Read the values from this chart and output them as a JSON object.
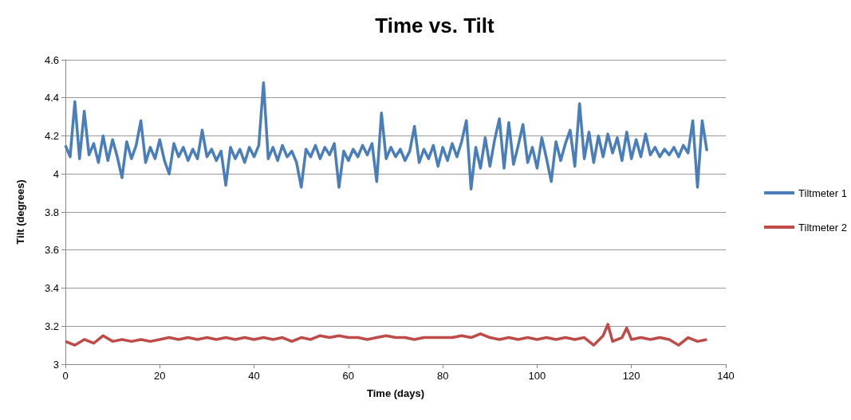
{
  "chart_data": {
    "type": "line",
    "title": "Time vs. Tilt",
    "xlabel": "Time (days)",
    "ylabel": "Tilt (degrees)",
    "xlim": [
      0,
      140
    ],
    "xticks": [
      0,
      20,
      40,
      60,
      80,
      100,
      120,
      140
    ],
    "ylim": [
      3,
      4.6
    ],
    "yticks": [
      3,
      3.2,
      3.4,
      3.6,
      3.8,
      4,
      4.2,
      4.4,
      4.6
    ],
    "grid": "y",
    "legend": "right",
    "marker": "none",
    "line_style": "solid",
    "series": [
      {
        "name": "Tiltmeter 1",
        "color": "#4a7ebb",
        "x": [
          0,
          1,
          2,
          3,
          4,
          5,
          6,
          7,
          8,
          9,
          10,
          11,
          12,
          13,
          14,
          15,
          16,
          17,
          18,
          19,
          20,
          21,
          22,
          23,
          24,
          25,
          26,
          27,
          28,
          29,
          30,
          31,
          32,
          33,
          34,
          35,
          36,
          37,
          38,
          39,
          40,
          41,
          42,
          43,
          44,
          45,
          46,
          47,
          48,
          49,
          50,
          51,
          52,
          53,
          54,
          55,
          56,
          57,
          58,
          59,
          60,
          61,
          62,
          63,
          64,
          65,
          66,
          67,
          68,
          69,
          70,
          71,
          72,
          73,
          74,
          75,
          76,
          77,
          78,
          79,
          80,
          81,
          82,
          83,
          84,
          85,
          86,
          87,
          88,
          89,
          90,
          91,
          92,
          93,
          94,
          95,
          96,
          97,
          98,
          99,
          100,
          101,
          102,
          103,
          104,
          105,
          106,
          107,
          108,
          109,
          110,
          111,
          112,
          113,
          114,
          115,
          116,
          117,
          118,
          119,
          120,
          121,
          122,
          123,
          124,
          125,
          126,
          127,
          128,
          129,
          130,
          131,
          132,
          133,
          134,
          135,
          136
        ],
        "values": [
          4.15,
          4.09,
          4.38,
          4.08,
          4.33,
          4.1,
          4.16,
          4.06,
          4.2,
          4.07,
          4.18,
          4.09,
          3.98,
          4.17,
          4.08,
          4.15,
          4.28,
          4.06,
          4.14,
          4.08,
          4.18,
          4.07,
          4.0,
          4.16,
          4.09,
          4.14,
          4.07,
          4.13,
          4.08,
          4.23,
          4.09,
          4.13,
          4.07,
          4.12,
          3.94,
          4.14,
          4.08,
          4.13,
          4.06,
          4.14,
          4.09,
          4.15,
          4.48,
          4.08,
          4.14,
          4.07,
          4.15,
          4.09,
          4.12,
          4.06,
          3.93,
          4.13,
          4.09,
          4.15,
          4.08,
          4.14,
          4.1,
          4.16,
          3.93,
          4.12,
          4.07,
          4.13,
          4.09,
          4.15,
          4.1,
          4.16,
          3.96,
          4.32,
          4.08,
          4.14,
          4.09,
          4.13,
          4.07,
          4.12,
          4.25,
          4.06,
          4.13,
          4.08,
          4.15,
          4.04,
          4.14,
          4.07,
          4.16,
          4.09,
          4.17,
          4.28,
          3.92,
          4.14,
          4.03,
          4.19,
          4.04,
          4.18,
          4.29,
          4.03,
          4.27,
          4.05,
          4.15,
          4.26,
          4.06,
          4.14,
          4.03,
          4.19,
          4.08,
          3.96,
          4.17,
          4.07,
          4.16,
          4.23,
          4.04,
          4.37,
          4.08,
          4.22,
          4.06,
          4.2,
          4.09,
          4.21,
          4.11,
          4.19,
          4.07,
          4.22,
          4.08,
          4.18,
          4.09,
          4.21,
          4.1,
          4.14,
          4.09,
          4.13,
          4.1,
          4.14,
          4.09,
          4.15,
          4.11,
          4.28,
          3.93,
          4.28,
          4.12
        ]
      },
      {
        "name": "Tiltmeter 2",
        "color": "#be4b48",
        "x": [
          0,
          2,
          4,
          6,
          8,
          10,
          12,
          14,
          16,
          18,
          20,
          22,
          24,
          26,
          28,
          30,
          32,
          34,
          36,
          38,
          40,
          42,
          44,
          46,
          48,
          50,
          52,
          54,
          56,
          58,
          60,
          62,
          64,
          66,
          68,
          70,
          72,
          74,
          76,
          78,
          80,
          82,
          84,
          86,
          88,
          90,
          92,
          94,
          96,
          98,
          100,
          102,
          104,
          106,
          108,
          110,
          112,
          114,
          115,
          116,
          118,
          119,
          120,
          122,
          124,
          126,
          128,
          130,
          132,
          134,
          136
        ],
        "values": [
          3.12,
          3.1,
          3.13,
          3.11,
          3.15,
          3.12,
          3.13,
          3.12,
          3.13,
          3.12,
          3.13,
          3.14,
          3.13,
          3.14,
          3.13,
          3.14,
          3.13,
          3.14,
          3.13,
          3.14,
          3.13,
          3.14,
          3.13,
          3.14,
          3.12,
          3.14,
          3.13,
          3.15,
          3.14,
          3.15,
          3.14,
          3.14,
          3.13,
          3.14,
          3.15,
          3.14,
          3.14,
          3.13,
          3.14,
          3.14,
          3.14,
          3.14,
          3.15,
          3.14,
          3.16,
          3.14,
          3.13,
          3.14,
          3.13,
          3.14,
          3.13,
          3.14,
          3.13,
          3.14,
          3.13,
          3.14,
          3.1,
          3.15,
          3.21,
          3.12,
          3.14,
          3.19,
          3.13,
          3.14,
          3.13,
          3.14,
          3.13,
          3.1,
          3.14,
          3.12,
          3.13
        ]
      }
    ]
  }
}
